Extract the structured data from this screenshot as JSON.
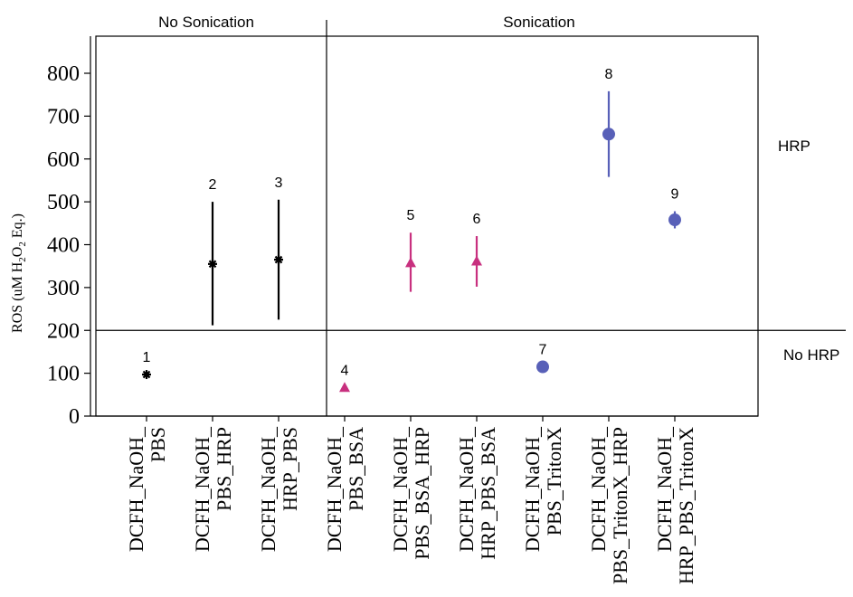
{
  "chart_data": {
    "type": "scatter",
    "title": "",
    "xlabel": "",
    "ylabel": {
      "prefix": "ROS (uM H",
      "sub1": "2",
      "mid": "O",
      "sub2": "2",
      "suffix": " Eq.)"
    },
    "ylim": [
      0,
      900
    ],
    "yticks": [
      "0",
      "100",
      "200",
      "300",
      "400",
      "500",
      "600",
      "700",
      "800"
    ],
    "ytick_values": [
      0,
      100,
      200,
      300,
      400,
      500,
      600,
      700,
      800
    ],
    "section_labels": {
      "left": "No Sonication",
      "right": "Sonication",
      "top_right": "HRP",
      "bottom_right": "No HRP"
    },
    "divider_y_value": 200,
    "categories": [
      [
        "DCFH_NaOH_",
        "PBS"
      ],
      [
        "DCFH_NaOH_",
        "PBS_HRP"
      ],
      [
        "DCFH_NaOH_",
        "HRP_PBS"
      ],
      [
        "DCFH_NaOH_",
        "PBS_BSA"
      ],
      [
        "DCFH_NaOH_",
        "PBS_BSA_HRP"
      ],
      [
        "DCFH_NaOH_",
        "HRP_PBS_BSA"
      ],
      [
        "DCFH_NaOH_",
        "PBS_TritonX"
      ],
      [
        "DCFH_NaOH_",
        "PBS_TritonX_HRP"
      ],
      [
        "DCFH_NaOH_",
        "HRP_PBS_TritonX"
      ]
    ],
    "series": [
      {
        "marker": "star",
        "color": "#000000",
        "points": [
          {
            "label": "1",
            "x": 0,
            "y": 97,
            "err_low": 97,
            "err_high": 97
          },
          {
            "label": "2",
            "x": 1,
            "y": 355,
            "err_low": 212,
            "err_high": 500
          },
          {
            "label": "3",
            "x": 2,
            "y": 365,
            "err_low": 225,
            "err_high": 505
          }
        ]
      },
      {
        "marker": "triangle",
        "color": "#c8307f",
        "points": [
          {
            "label": "4",
            "x": 3,
            "y": 67,
            "err_low": 67,
            "err_high": 67
          },
          {
            "label": "5",
            "x": 4,
            "y": 358,
            "err_low": 290,
            "err_high": 428
          },
          {
            "label": "6",
            "x": 5,
            "y": 362,
            "err_low": 302,
            "err_high": 420
          }
        ]
      },
      {
        "marker": "circle",
        "color": "#5860b8",
        "points": [
          {
            "label": "7",
            "x": 6,
            "y": 115,
            "err_low": 115,
            "err_high": 115
          },
          {
            "label": "8",
            "x": 7,
            "y": 658,
            "err_low": 558,
            "err_high": 758
          },
          {
            "label": "9",
            "x": 8,
            "y": 458,
            "err_low": 438,
            "err_high": 478
          }
        ]
      }
    ]
  }
}
